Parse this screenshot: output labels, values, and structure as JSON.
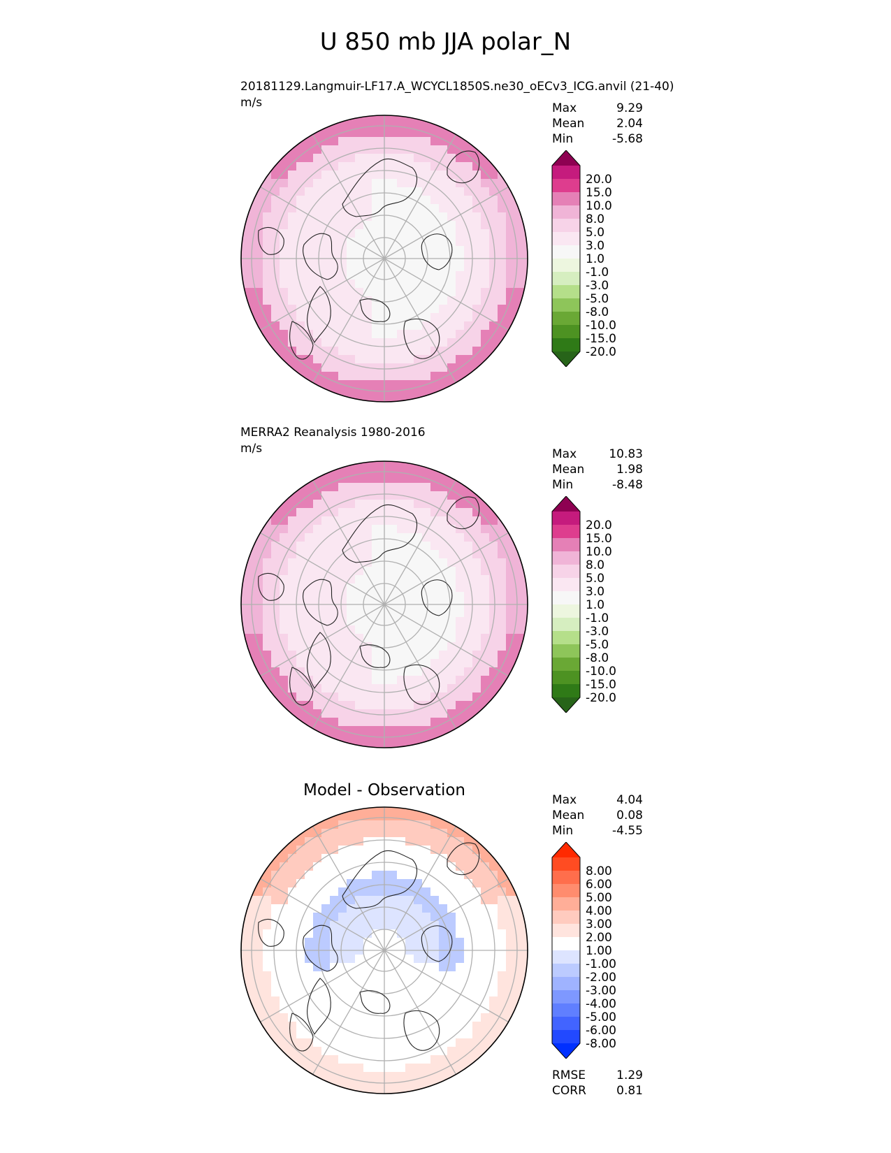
{
  "figure_title": "U 850 mb JJA polar_N",
  "palettes": {
    "pink_green": [
      "#8e0152",
      "#c51b7d",
      "#de3d8e",
      "#e580b6",
      "#f0b4d7",
      "#f7d3e8",
      "#fae7f2",
      "#f7f7f7",
      "#edf6df",
      "#d6eec0",
      "#b5df8a",
      "#8ec55a",
      "#6aa835",
      "#4d9222",
      "#2f7a17",
      "#276419"
    ],
    "red_blue": [
      "#ff2a00",
      "#ff4c22",
      "#ff6e4c",
      "#ff8c6e",
      "#ffae98",
      "#ffcbbf",
      "#ffe4de",
      "#ffffff",
      "#dde4ff",
      "#bccbff",
      "#9fb3ff",
      "#7e98ff",
      "#607fff",
      "#4264ff",
      "#2249ff",
      "#0030ff"
    ]
  },
  "chart_data": [
    {
      "type": "heatmap",
      "projection": "north-polar-stereographic",
      "title": "20181129.Langmuir-LF17.A_WCYCL1850S.ne30_oECv3_ICG.anvil (21-40)",
      "units": "m/s",
      "stats": [
        {
          "label": "Max",
          "value": "9.29"
        },
        {
          "label": "Mean",
          "value": "2.04"
        },
        {
          "label": "Min",
          "value": "-5.68"
        }
      ],
      "colorbar_ticks": [
        "20.0",
        "15.0",
        "10.0",
        "8.0",
        "5.0",
        "3.0",
        "1.0",
        "-1.0",
        "-3.0",
        "-5.0",
        "-8.0",
        "-10.0",
        "-15.0",
        "-20.0"
      ],
      "palette": "pink_green"
    },
    {
      "type": "heatmap",
      "projection": "north-polar-stereographic",
      "title": "MERRA2 Reanalysis 1980-2016",
      "units": "m/s",
      "stats": [
        {
          "label": "Max",
          "value": "10.83"
        },
        {
          "label": "Mean",
          "value": "1.98"
        },
        {
          "label": "Min",
          "value": "-8.48"
        }
      ],
      "colorbar_ticks": [
        "20.0",
        "15.0",
        "10.0",
        "8.0",
        "5.0",
        "3.0",
        "1.0",
        "-1.0",
        "-3.0",
        "-5.0",
        "-8.0",
        "-10.0",
        "-15.0",
        "-20.0"
      ],
      "palette": "pink_green"
    },
    {
      "type": "heatmap",
      "projection": "north-polar-stereographic",
      "title": "Model - Observation",
      "units": "",
      "stats": [
        {
          "label": "Max",
          "value": "4.04"
        },
        {
          "label": "Mean",
          "value": "0.08"
        },
        {
          "label": "Min",
          "value": "-4.55"
        }
      ],
      "colorbar_ticks": [
        "8.00",
        "6.00",
        "5.00",
        "4.00",
        "3.00",
        "2.00",
        "1.00",
        "-1.00",
        "-2.00",
        "-3.00",
        "-4.00",
        "-5.00",
        "-6.00",
        "-8.00"
      ],
      "palette": "red_blue",
      "metrics": [
        {
          "label": "RMSE",
          "value": "1.29"
        },
        {
          "label": "CORR",
          "value": "0.81"
        }
      ]
    }
  ]
}
